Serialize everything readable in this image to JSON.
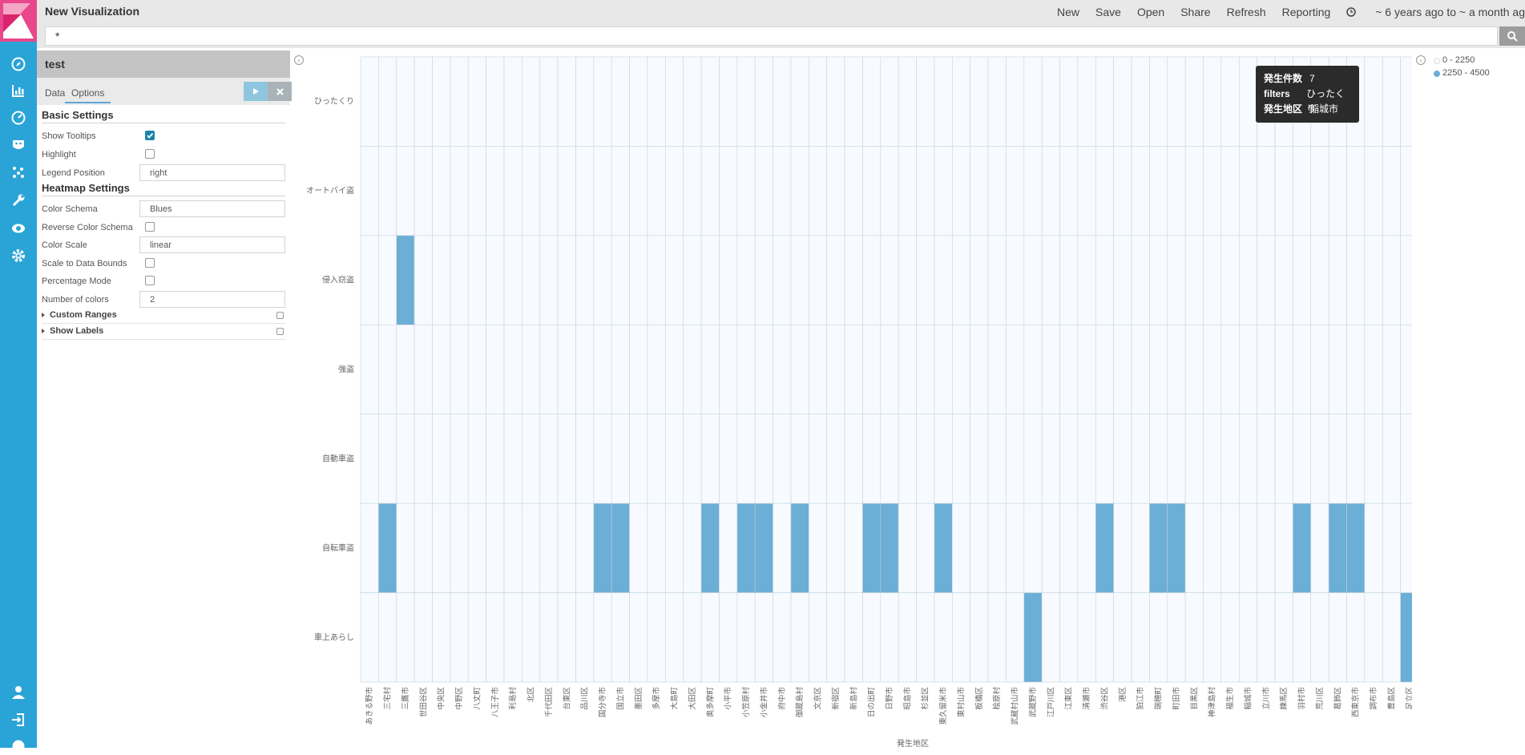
{
  "app": {
    "title": "New Visualization"
  },
  "top_menu": [
    "New",
    "Save",
    "Open",
    "Share",
    "Refresh",
    "Reporting"
  ],
  "time_range": "~ 6 years ago to ~ a month ag",
  "search": {
    "value": "*"
  },
  "sidebar": {
    "vis_title": "test",
    "tabs": {
      "data": "Data",
      "options": "Options"
    },
    "basic_settings": "Basic Settings",
    "show_tooltips": {
      "label": "Show Tooltips",
      "checked": true
    },
    "highlight": {
      "label": "Highlight",
      "checked": false
    },
    "legend_position": {
      "label": "Legend Position",
      "value": "right"
    },
    "heatmap_settings": "Heatmap Settings",
    "color_schema": {
      "label": "Color Schema",
      "value": "Blues"
    },
    "reverse_color_schema": {
      "label": "Reverse Color Schema",
      "checked": false
    },
    "color_scale": {
      "label": "Color Scale",
      "value": "linear"
    },
    "scale_to_bounds": {
      "label": "Scale to Data Bounds",
      "checked": false
    },
    "percentage_mode": {
      "label": "Percentage Mode",
      "checked": false
    },
    "number_of_colors": {
      "label": "Number of colors",
      "value": "2"
    },
    "custom_ranges": "Custom Ranges",
    "show_labels": "Show Labels"
  },
  "tooltip": {
    "rows": [
      {
        "key": "発生件数",
        "value": "7"
      },
      {
        "key": "filters",
        "value": "ひったくり"
      },
      {
        "key": "発生地区",
        "value": "稲城市"
      }
    ]
  },
  "legend": {
    "items": [
      {
        "label": "0 - 2250",
        "color": "#f7fbff"
      },
      {
        "label": "2250 - 4500",
        "color": "#6baed6"
      }
    ]
  },
  "chart_data": {
    "type": "heatmap",
    "xlabel": "発生地区",
    "ylabel": "",
    "color_low": "#f7fbff",
    "color_high": "#6baed6",
    "y_categories": [
      "ひったくり",
      "オートバイ盗",
      "侵入窃盗",
      "強盗",
      "自動車盗",
      "自転車盗",
      "車上あらし"
    ],
    "x_categories": [
      "あきる野市",
      "三宅村",
      "三鷹市",
      "世田谷区",
      "中央区",
      "中野区",
      "八丈町",
      "八王子市",
      "利島村",
      "北区",
      "千代田区",
      "台東区",
      "品川区",
      "国分寺市",
      "国立市",
      "墨田区",
      "多摩市",
      "大島町",
      "大田区",
      "奥多摩町",
      "小平市",
      "小笠原村",
      "小金井市",
      "府中市",
      "御蔵島村",
      "文京区",
      "新宿区",
      "新島村",
      "日の出町",
      "日野市",
      "昭島市",
      "杉並区",
      "東久留米市",
      "東村山市",
      "板橋区",
      "桧原村",
      "武蔵村山市",
      "武蔵野市",
      "江戸川区",
      "江東区",
      "清瀬市",
      "渋谷区",
      "港区",
      "狛江市",
      "瑞穂町",
      "町田市",
      "目黒区",
      "神津島村",
      "福生市",
      "稲城市",
      "立川市",
      "練馬区",
      "羽村市",
      "荒川区",
      "葛飾区",
      "西東京市",
      "調布市",
      "豊島区",
      "足立区"
    ],
    "high_cells": [
      {
        "y": "侵入窃盗",
        "x": "三鷹市"
      },
      {
        "y": "自転車盗",
        "x": "三宅村"
      },
      {
        "y": "自転車盗",
        "x": "国分寺市"
      },
      {
        "y": "自転車盗",
        "x": "国立市"
      },
      {
        "y": "自転車盗",
        "x": "奥多摩町"
      },
      {
        "y": "自転車盗",
        "x": "小笠原村"
      },
      {
        "y": "自転車盗",
        "x": "小金井市"
      },
      {
        "y": "自転車盗",
        "x": "御蔵島村"
      },
      {
        "y": "自転車盗",
        "x": "日の出町"
      },
      {
        "y": "自転車盗",
        "x": "日野市"
      },
      {
        "y": "自転車盗",
        "x": "東久留米市"
      },
      {
        "y": "自転車盗",
        "x": "渋谷区"
      },
      {
        "y": "自転車盗",
        "x": "瑞穂町"
      },
      {
        "y": "自転車盗",
        "x": "町田市"
      },
      {
        "y": "自転車盗",
        "x": "羽村市"
      },
      {
        "y": "自転車盗",
        "x": "葛飾区"
      },
      {
        "y": "自転車盗",
        "x": "西東京市"
      },
      {
        "y": "車上あらし",
        "x": "武蔵野市"
      },
      {
        "y": "車上あらし",
        "x": "足立区"
      }
    ]
  }
}
